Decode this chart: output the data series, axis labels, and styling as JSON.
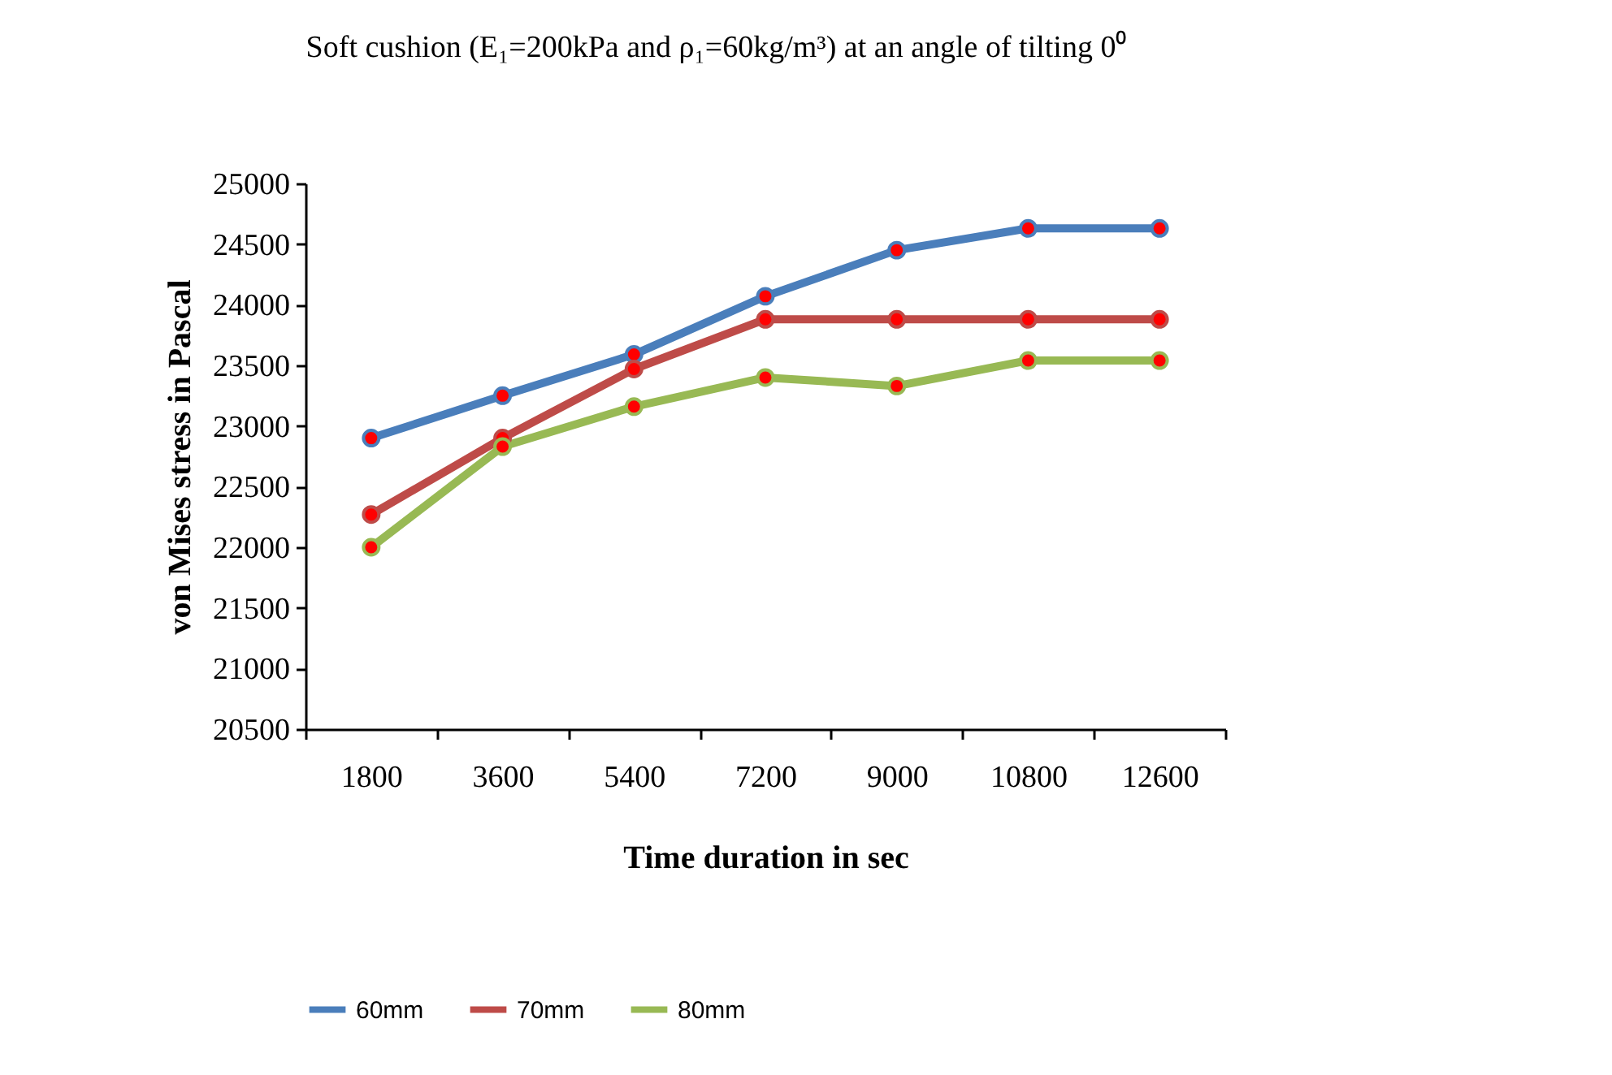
{
  "chart_data": {
    "type": "line",
    "title": "Soft cushion (E₁=200kPa and ρ₁=60kg/m³) at an angle of tilting 0⁰",
    "xlabel": "Time duration in sec",
    "ylabel": "von Mises stress in Pascal",
    "categories": [
      "1800",
      "3600",
      "5400",
      "7200",
      "9000",
      "10800",
      "12600"
    ],
    "series": [
      {
        "name": "60mm",
        "color": "#4a7ebb",
        "values": [
          22900,
          23250,
          23590,
          24070,
          24450,
          24630,
          24630
        ]
      },
      {
        "name": "70mm",
        "color": "#be4b48",
        "values": [
          22270,
          22900,
          23470,
          23880,
          23880,
          23880,
          23880
        ]
      },
      {
        "name": "80mm",
        "color": "#98b954",
        "values": [
          22000,
          22830,
          23160,
          23400,
          23330,
          23540,
          23540
        ]
      }
    ],
    "ylim": [
      20500,
      25000
    ],
    "yticks": [
      20500,
      21000,
      21500,
      22000,
      22500,
      23000,
      23500,
      24000,
      24500,
      25000
    ],
    "grid": false,
    "legend": "bottom",
    "marker": "circle",
    "line_style": "solid"
  }
}
